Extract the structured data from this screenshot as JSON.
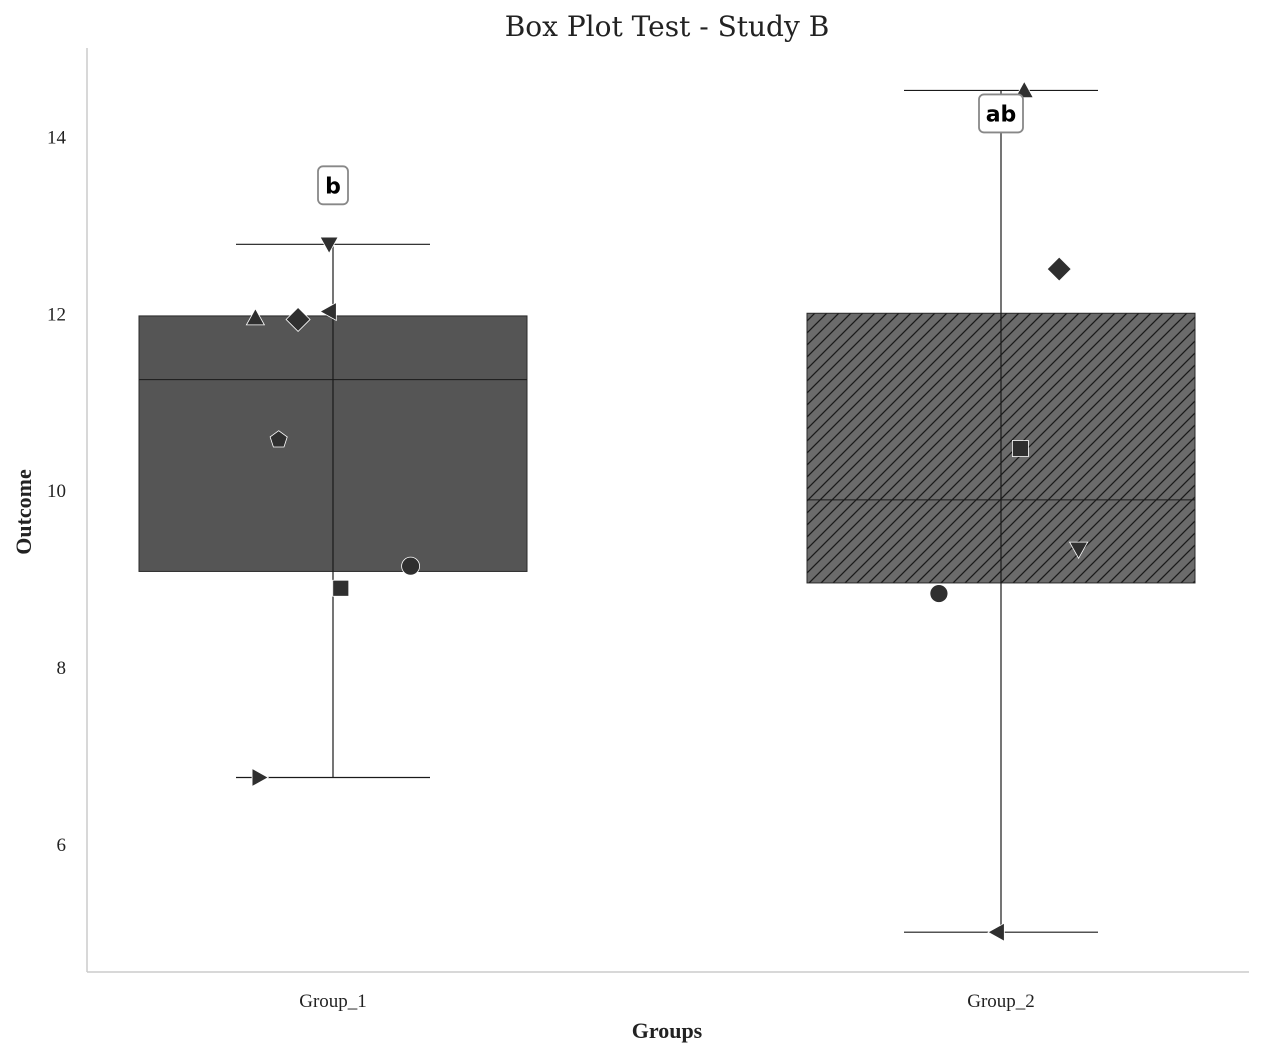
{
  "chart_data": {
    "type": "box",
    "title": "Box Plot Test - Study B",
    "xlabel": "Groups",
    "ylabel": "Outcome",
    "ylim": [
      4.55,
      15.0
    ],
    "yticks": [
      6,
      8,
      10,
      12,
      14
    ],
    "grid": false,
    "categories": [
      "Group_1",
      "Group_2"
    ],
    "boxes": [
      {
        "name": "Group_1",
        "whisker_low": 6.75,
        "q1": 9.08,
        "median": 11.25,
        "q3": 11.97,
        "whisker_high": 12.78,
        "fill": "#555555",
        "hatch": false,
        "significance_label": "b",
        "points": [
          {
            "offset": -0.2,
            "y": 11.95,
            "marker": "triangle-up"
          },
          {
            "offset": -0.09,
            "y": 11.93,
            "marker": "diamond"
          },
          {
            "offset": -0.01,
            "y": 12.78,
            "marker": "triangle-down"
          },
          {
            "offset": -0.01,
            "y": 12.02,
            "marker": "triangle-left"
          },
          {
            "offset": -0.14,
            "y": 10.57,
            "marker": "pentagon"
          },
          {
            "offset": 0.2,
            "y": 9.14,
            "marker": "circle"
          },
          {
            "offset": 0.02,
            "y": 8.89,
            "marker": "square"
          },
          {
            "offset": -0.19,
            "y": 6.75,
            "marker": "triangle-right"
          }
        ]
      },
      {
        "name": "Group_2",
        "whisker_low": 5.0,
        "q1": 8.95,
        "median": 9.89,
        "q3": 12.0,
        "whisker_high": 14.52,
        "fill": "#6b6b6b",
        "hatch": true,
        "significance_label": "ab",
        "points": [
          {
            "offset": 0.06,
            "y": 14.52,
            "marker": "triangle-up"
          },
          {
            "offset": 0.15,
            "y": 12.5,
            "marker": "diamond"
          },
          {
            "offset": 0.05,
            "y": 10.47,
            "marker": "square"
          },
          {
            "offset": 0.2,
            "y": 9.33,
            "marker": "triangle-down"
          },
          {
            "offset": -0.16,
            "y": 8.83,
            "marker": "circle"
          },
          {
            "offset": -0.01,
            "y": 5.0,
            "marker": "triangle-left"
          }
        ]
      }
    ]
  }
}
